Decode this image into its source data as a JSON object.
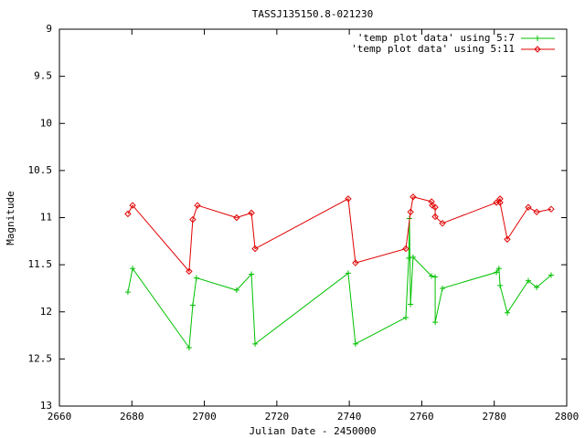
{
  "chart_data": {
    "type": "line",
    "title": "TASSJ135150.8-021230",
    "x_label": "Julian Date - 2450000",
    "y_label": "Magnitude",
    "xlim": [
      2660,
      2800
    ],
    "xticks": [
      2660,
      2680,
      2700,
      2720,
      2740,
      2760,
      2780,
      2800
    ],
    "ylim": [
      9,
      13
    ],
    "yticks": [
      9,
      9.5,
      10,
      10.5,
      11,
      11.5,
      12,
      12.5,
      13
    ],
    "y_reversed": true,
    "grid": false,
    "legend": "top-right",
    "series": [
      {
        "name": "'temp plot data' using 5:7",
        "color": "#00c000",
        "marker": "plus",
        "x": [
          2678.9,
          2680.2,
          2695.8,
          2696.8,
          2697.8,
          2708.9,
          2713.0,
          2714.0,
          2739.7,
          2741.7,
          2755.6,
          2756.4,
          2756.6,
          2756.9,
          2757.6,
          2762.7,
          2763.7,
          2763.7,
          2765.7,
          2780.6,
          2781.3,
          2781.6,
          2783.6,
          2789.4,
          2791.7,
          2795.7
        ],
        "values": [
          11.79,
          11.54,
          12.38,
          11.93,
          11.64,
          11.77,
          11.6,
          12.34,
          11.59,
          12.34,
          12.06,
          11.43,
          11.01,
          11.92,
          11.42,
          11.62,
          11.63,
          12.11,
          11.75,
          11.58,
          11.54,
          11.72,
          12.01,
          11.67,
          11.74,
          11.61
        ]
      },
      {
        "name": "'temp plot data' using 5:11",
        "color": "#e00000",
        "marker": "diamond",
        "x": [
          2678.9,
          2680.2,
          2695.8,
          2696.8,
          2698.1,
          2708.9,
          2713.0,
          2714.0,
          2739.7,
          2741.7,
          2755.6,
          2756.9,
          2757.6,
          2762.7,
          2762.9,
          2763.7,
          2763.7,
          2765.7,
          2780.6,
          2781.6,
          2781.6,
          2783.6,
          2789.4,
          2791.7,
          2795.7
        ],
        "values": [
          10.96,
          10.87,
          11.57,
          11.02,
          10.87,
          11.0,
          10.95,
          11.33,
          10.8,
          11.48,
          11.33,
          10.94,
          10.78,
          10.83,
          10.87,
          10.89,
          10.99,
          11.06,
          10.84,
          10.8,
          10.84,
          11.23,
          10.89,
          10.94,
          10.91
        ]
      }
    ]
  }
}
